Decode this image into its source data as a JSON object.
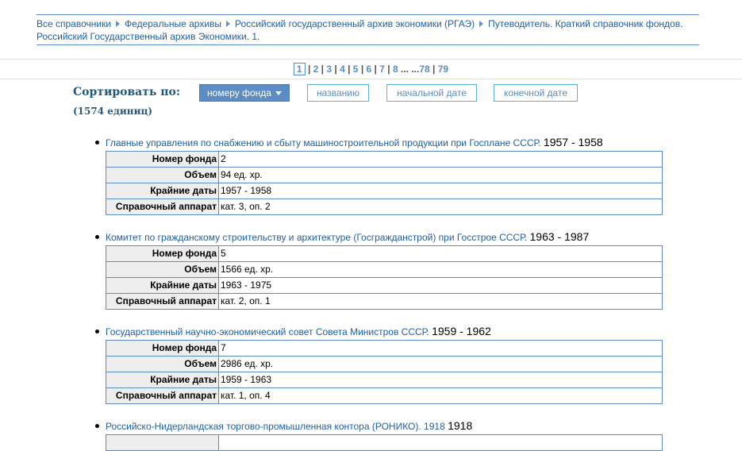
{
  "breadcrumbs": [
    "Все справочники",
    "Федеральные архивы",
    "Российский государственный архив экономики (РГАЭ)",
    "Путеводитель. Краткий справочник фондов. Российский Государственный архив Экономики. 1."
  ],
  "pagination": {
    "current": "1",
    "pages": [
      "2",
      "3",
      "4",
      "5",
      "6",
      "7",
      "8"
    ],
    "ellipsis": "... ...",
    "last": [
      "78",
      "79"
    ]
  },
  "sort": {
    "label": "Сортировать по:",
    "options": [
      "номеру фонда",
      "названию",
      "начальной дате",
      "конечной дате"
    ],
    "active": 0
  },
  "count": "(1574 единиц)",
  "field_labels": [
    "Номер фонда",
    "Объем",
    "Крайние даты",
    "Справочный аппарат"
  ],
  "items": [
    {
      "title": "Главные управления по снабжению и сбыту машиностроительной продукции при Госплане СССР.",
      "years": "1957 - 1958",
      "values": [
        "2",
        "94 ед. хр.",
        "1957 - 1958",
        "кат. 3, оп. 2"
      ]
    },
    {
      "title": "Комитет по гражданскому строительству и архитектуре (Госгражданстрой) при Госстрое СССР.",
      "years": "1963 - 1987",
      "values": [
        "5",
        "1566 ед. хр.",
        "1963 - 1975",
        "кат. 2, оп. 1"
      ]
    },
    {
      "title": "Государственный научно-экономический совет Совета Министров СССР.",
      "years": "1959 - 1962",
      "values": [
        "7",
        "2986 ед. хр.",
        "1959 - 1963",
        "кат. 1, оп. 4"
      ]
    },
    {
      "title": "Российско-Нидерландская торгово-промышленная контора (РОНИКО). 1918",
      "years": "1918"
    }
  ]
}
